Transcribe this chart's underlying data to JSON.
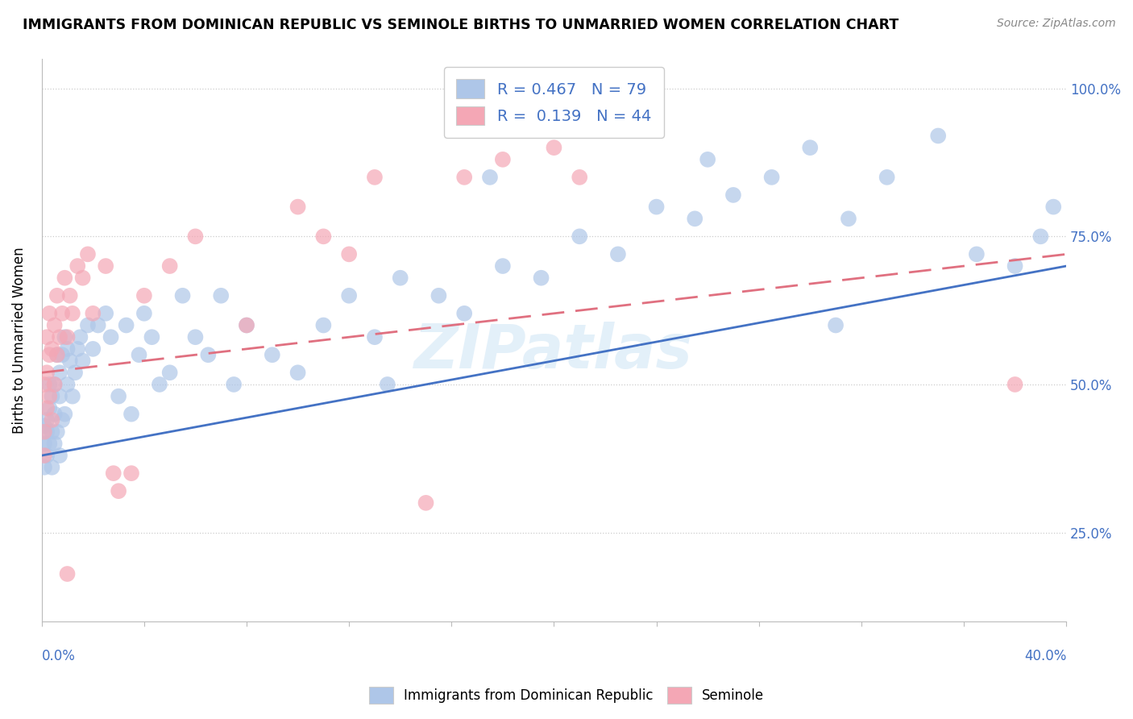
{
  "title": "IMMIGRANTS FROM DOMINICAN REPUBLIC VS SEMINOLE BIRTHS TO UNMARRIED WOMEN CORRELATION CHART",
  "source": "Source: ZipAtlas.com",
  "ylabel": "Births to Unmarried Women",
  "legend_label_blue": "Immigrants from Dominican Republic",
  "legend_label_pink": "Seminole",
  "blue_R": 0.467,
  "blue_N": 79,
  "pink_R": 0.139,
  "pink_N": 44,
  "blue_color": "#aec6e8",
  "pink_color": "#f4a7b5",
  "blue_line_color": "#4472c4",
  "pink_line_color": "#e07080",
  "watermark": "ZIPatlas",
  "xlim": [
    0.0,
    0.4
  ],
  "ylim": [
    0.1,
    1.05
  ],
  "ytick_positions": [
    0.25,
    0.5,
    0.75,
    1.0
  ],
  "ytick_labels": [
    "25.0%",
    "50.0%",
    "75.0%",
    "100.0%"
  ],
  "blue_line_x0": 0.0,
  "blue_line_y0": 0.38,
  "blue_line_x1": 0.4,
  "blue_line_y1": 0.7,
  "pink_line_x0": 0.0,
  "pink_line_y0": 0.52,
  "pink_line_x1": 0.4,
  "pink_line_y1": 0.72,
  "blue_x": [
    0.001,
    0.001,
    0.001,
    0.002,
    0.002,
    0.002,
    0.003,
    0.003,
    0.003,
    0.004,
    0.004,
    0.004,
    0.005,
    0.005,
    0.005,
    0.006,
    0.006,
    0.007,
    0.007,
    0.007,
    0.008,
    0.008,
    0.009,
    0.009,
    0.01,
    0.01,
    0.011,
    0.012,
    0.013,
    0.014,
    0.015,
    0.016,
    0.018,
    0.02,
    0.022,
    0.025,
    0.027,
    0.03,
    0.033,
    0.035,
    0.038,
    0.04,
    0.043,
    0.046,
    0.05,
    0.055,
    0.06,
    0.065,
    0.07,
    0.075,
    0.08,
    0.09,
    0.1,
    0.11,
    0.12,
    0.13,
    0.14,
    0.155,
    0.165,
    0.18,
    0.195,
    0.21,
    0.225,
    0.24,
    0.255,
    0.27,
    0.285,
    0.3,
    0.315,
    0.33,
    0.35,
    0.365,
    0.38,
    0.39,
    0.395,
    0.31,
    0.26,
    0.175,
    0.135
  ],
  "blue_y": [
    0.43,
    0.4,
    0.36,
    0.44,
    0.38,
    0.42,
    0.46,
    0.4,
    0.5,
    0.42,
    0.48,
    0.36,
    0.45,
    0.5,
    0.4,
    0.55,
    0.42,
    0.52,
    0.38,
    0.48,
    0.55,
    0.44,
    0.58,
    0.45,
    0.56,
    0.5,
    0.54,
    0.48,
    0.52,
    0.56,
    0.58,
    0.54,
    0.6,
    0.56,
    0.6,
    0.62,
    0.58,
    0.48,
    0.6,
    0.45,
    0.55,
    0.62,
    0.58,
    0.5,
    0.52,
    0.65,
    0.58,
    0.55,
    0.65,
    0.5,
    0.6,
    0.55,
    0.52,
    0.6,
    0.65,
    0.58,
    0.68,
    0.65,
    0.62,
    0.7,
    0.68,
    0.75,
    0.72,
    0.8,
    0.78,
    0.82,
    0.85,
    0.9,
    0.78,
    0.85,
    0.92,
    0.72,
    0.7,
    0.75,
    0.8,
    0.6,
    0.88,
    0.85,
    0.5
  ],
  "pink_x": [
    0.001,
    0.001,
    0.001,
    0.002,
    0.002,
    0.002,
    0.003,
    0.003,
    0.003,
    0.004,
    0.004,
    0.005,
    0.005,
    0.006,
    0.006,
    0.007,
    0.008,
    0.009,
    0.01,
    0.011,
    0.012,
    0.014,
    0.016,
    0.018,
    0.02,
    0.025,
    0.028,
    0.03,
    0.035,
    0.04,
    0.05,
    0.06,
    0.08,
    0.1,
    0.11,
    0.12,
    0.13,
    0.15,
    0.165,
    0.18,
    0.2,
    0.21,
    0.38,
    0.01
  ],
  "pink_y": [
    0.5,
    0.42,
    0.38,
    0.58,
    0.46,
    0.52,
    0.55,
    0.48,
    0.62,
    0.56,
    0.44,
    0.6,
    0.5,
    0.65,
    0.55,
    0.58,
    0.62,
    0.68,
    0.58,
    0.65,
    0.62,
    0.7,
    0.68,
    0.72,
    0.62,
    0.7,
    0.35,
    0.32,
    0.35,
    0.65,
    0.7,
    0.75,
    0.6,
    0.8,
    0.75,
    0.72,
    0.85,
    0.3,
    0.85,
    0.88,
    0.9,
    0.85,
    0.5,
    0.18
  ]
}
